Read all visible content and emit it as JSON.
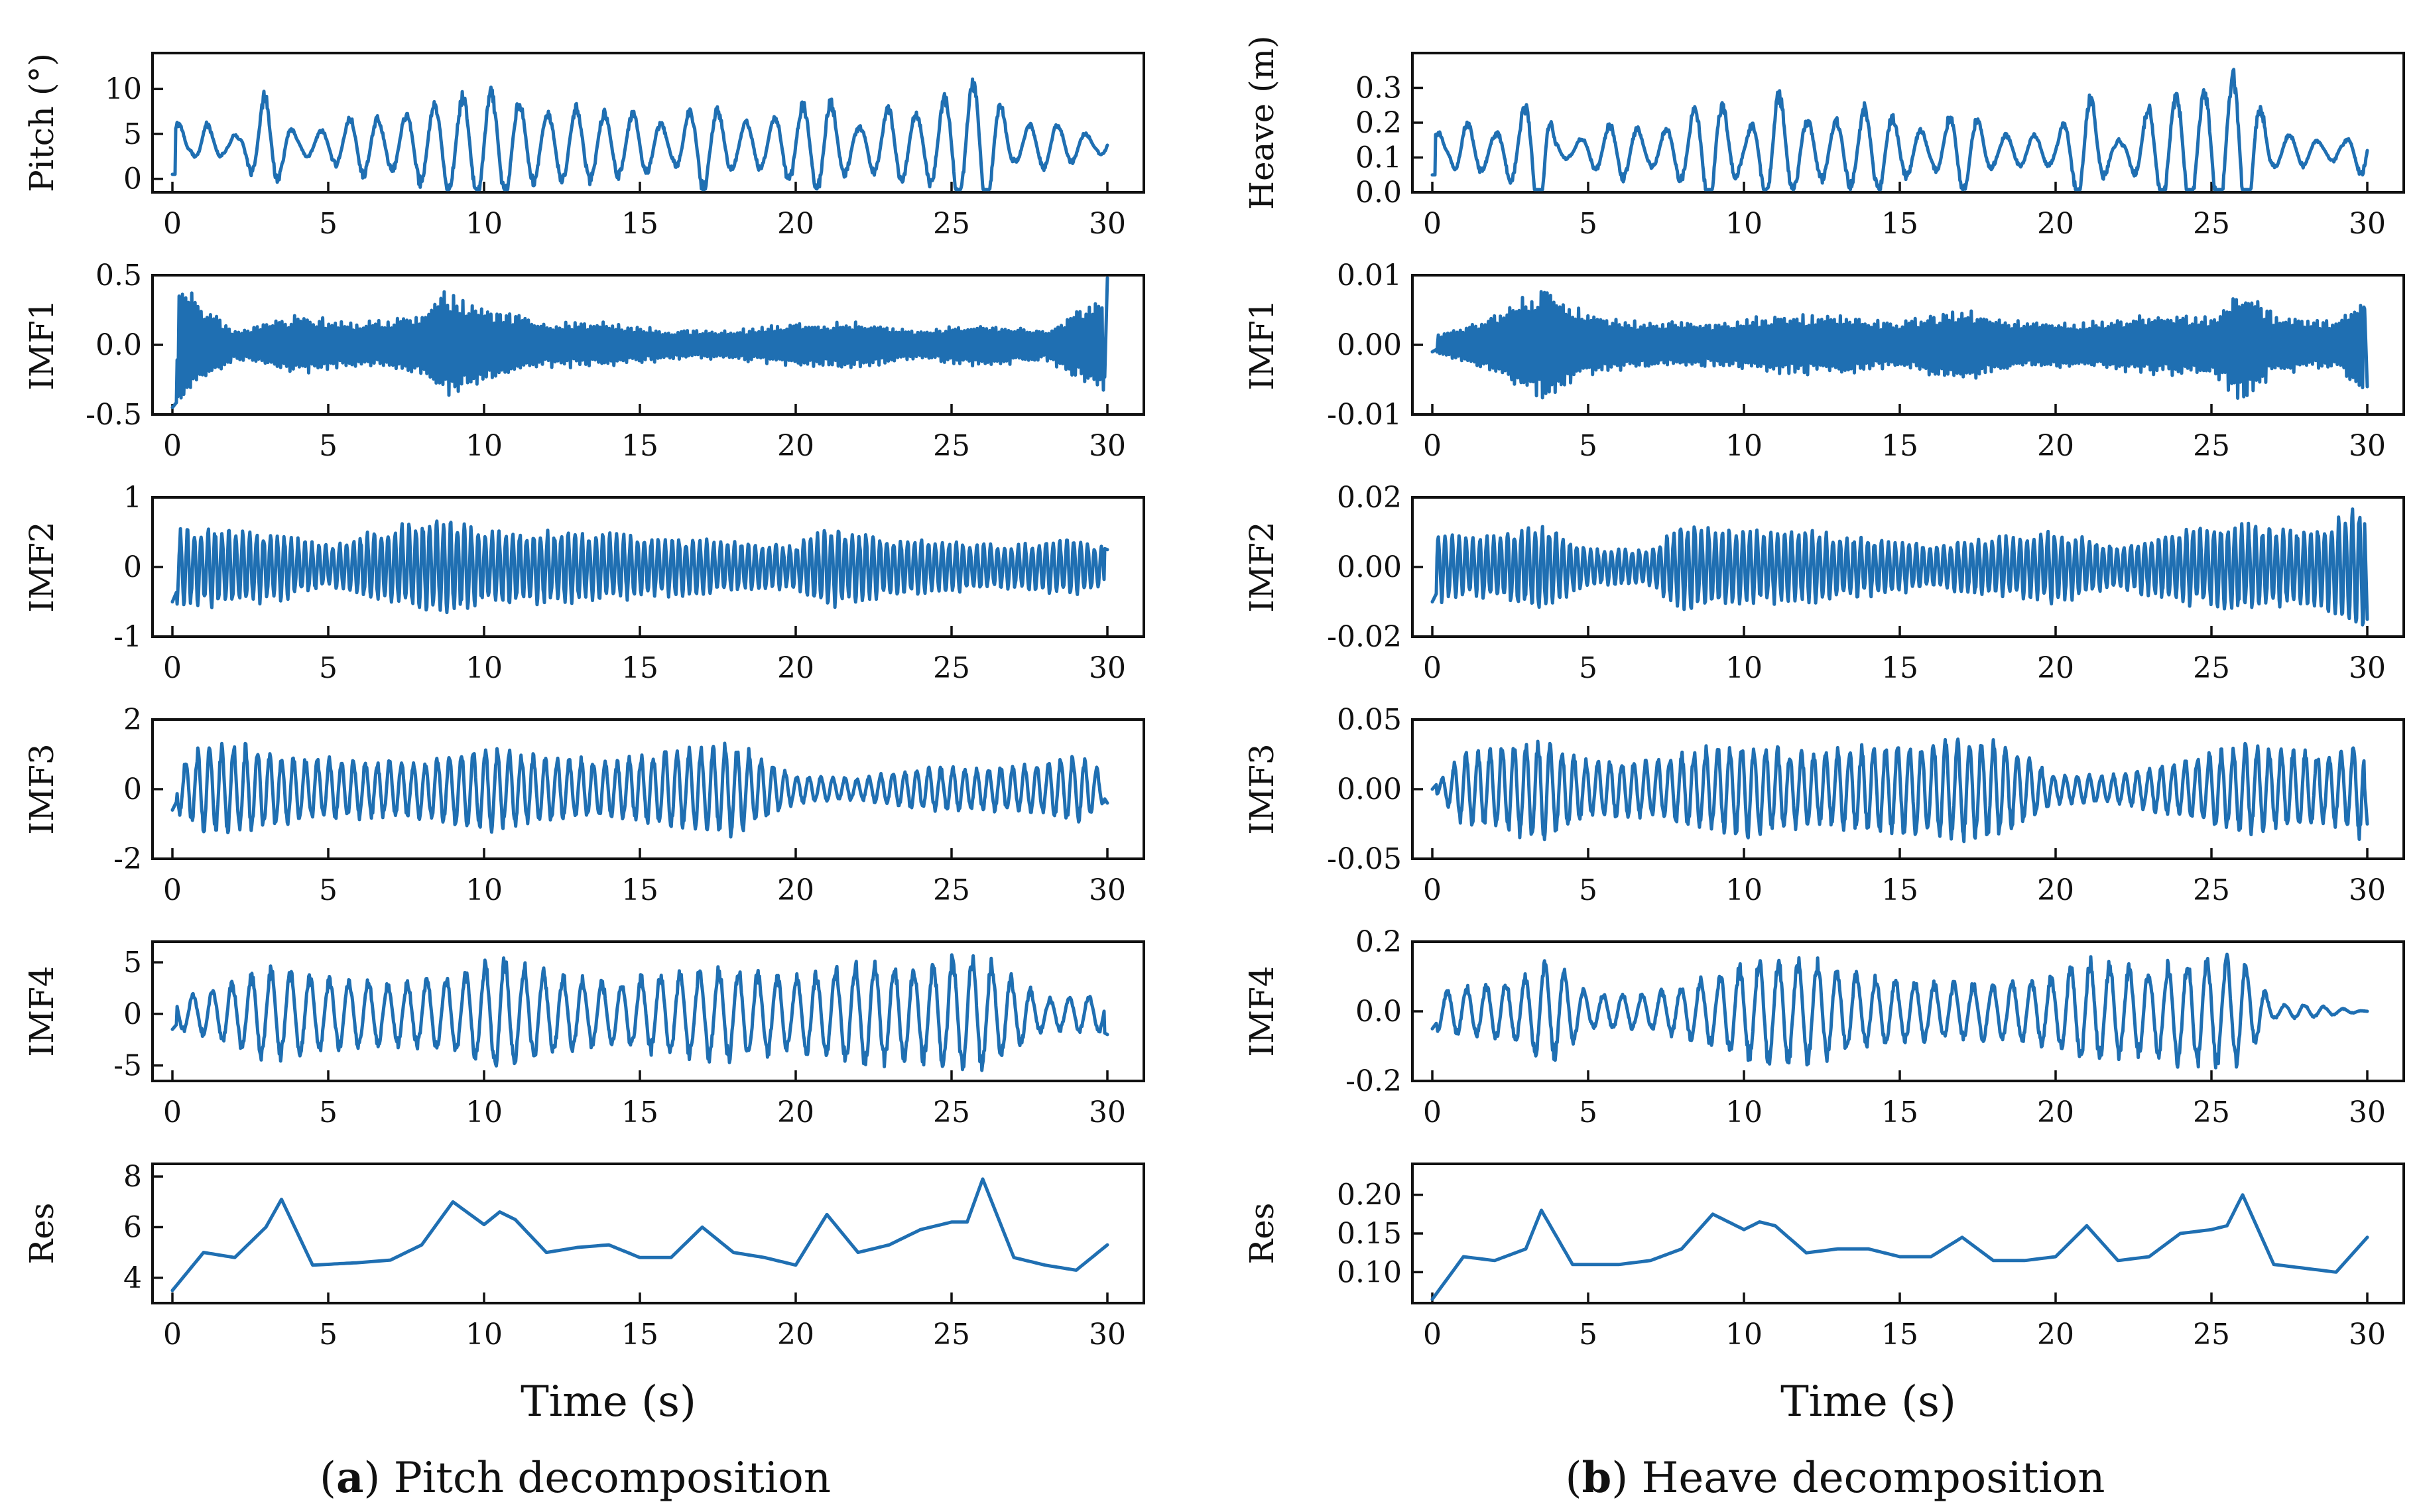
{
  "figure": {
    "xlabel": "Time (s)",
    "line_color": "#1f6fb2",
    "columns": [
      {
        "caption_letter": "a",
        "caption_text": "Pitch decomposition",
        "panels": [
          {
            "ylabel": "Pitch (°)",
            "ylim": [
              -1.5,
              14
            ],
            "yticks": [
              {
                "v": 0,
                "label": "0"
              },
              {
                "v": 5,
                "label": "5"
              },
              {
                "v": 10,
                "label": "10"
              }
            ]
          },
          {
            "ylabel": "IMF1",
            "ylim": [
              -0.5,
              0.5
            ],
            "yticks": [
              {
                "v": -0.5,
                "label": "-0.5"
              },
              {
                "v": 0,
                "label": "0.0"
              },
              {
                "v": 0.5,
                "label": "0.5"
              }
            ]
          },
          {
            "ylabel": "IMF2",
            "ylim": [
              -1,
              1
            ],
            "yticks": [
              {
                "v": -1,
                "label": "-1"
              },
              {
                "v": 0,
                "label": "0"
              },
              {
                "v": 1,
                "label": "1"
              }
            ]
          },
          {
            "ylabel": "IMF3",
            "ylim": [
              -2,
              2
            ],
            "yticks": [
              {
                "v": -2,
                "label": "-2"
              },
              {
                "v": 0,
                "label": "0"
              },
              {
                "v": 2,
                "label": "2"
              }
            ]
          },
          {
            "ylabel": "IMF4",
            "ylim": [
              -6.5,
              7
            ],
            "yticks": [
              {
                "v": -5,
                "label": "-5"
              },
              {
                "v": 0,
                "label": "0"
              },
              {
                "v": 5,
                "label": "5"
              }
            ]
          },
          {
            "ylabel": "Res",
            "ylim": [
              3,
              8.5
            ],
            "yticks": [
              {
                "v": 4,
                "label": "4"
              },
              {
                "v": 6,
                "label": "6"
              },
              {
                "v": 8,
                "label": "8"
              }
            ]
          }
        ]
      },
      {
        "caption_letter": "b",
        "caption_text": "Heave decomposition",
        "panels": [
          {
            "ylabel": "Heave (m)",
            "ylim": [
              0,
              0.4
            ],
            "yticks": [
              {
                "v": 0,
                "label": "0.0"
              },
              {
                "v": 0.1,
                "label": "0.1"
              },
              {
                "v": 0.2,
                "label": "0.2"
              },
              {
                "v": 0.3,
                "label": "0.3"
              }
            ]
          },
          {
            "ylabel": "IMF1",
            "ylim": [
              -0.01,
              0.01
            ],
            "yticks": [
              {
                "v": -0.01,
                "label": "-0.01"
              },
              {
                "v": 0,
                "label": "0.00"
              },
              {
                "v": 0.01,
                "label": "0.01"
              }
            ]
          },
          {
            "ylabel": "IMF2",
            "ylim": [
              -0.02,
              0.02
            ],
            "yticks": [
              {
                "v": -0.02,
                "label": "-0.02"
              },
              {
                "v": 0,
                "label": "0.00"
              },
              {
                "v": 0.02,
                "label": "0.02"
              }
            ]
          },
          {
            "ylabel": "IMF3",
            "ylim": [
              -0.05,
              0.05
            ],
            "yticks": [
              {
                "v": -0.05,
                "label": "-0.05"
              },
              {
                "v": 0,
                "label": "0.00"
              },
              {
                "v": 0.05,
                "label": "0.05"
              }
            ]
          },
          {
            "ylabel": "IMF4",
            "ylim": [
              -0.2,
              0.2
            ],
            "yticks": [
              {
                "v": -0.2,
                "label": "-0.2"
              },
              {
                "v": 0,
                "label": "0.0"
              },
              {
                "v": 0.2,
                "label": "0.2"
              }
            ]
          },
          {
            "ylabel": "Res",
            "ylim": [
              0.06,
              0.24
            ],
            "yticks": [
              {
                "v": 0.1,
                "label": "0.10"
              },
              {
                "v": 0.15,
                "label": "0.15"
              },
              {
                "v": 0.2,
                "label": "0.20"
              }
            ]
          }
        ]
      }
    ]
  },
  "chart_data": {
    "type": "line",
    "xlim": [
      0,
      30
    ],
    "xticks": [
      0,
      5,
      10,
      15,
      20,
      25,
      30
    ],
    "xlabel": "Time (s)",
    "grid": false,
    "panels": [
      {
        "ylabel": "Pitch (°)",
        "x": [
          0,
          1,
          2,
          3,
          4,
          5,
          6,
          7,
          8,
          9,
          10,
          11,
          12,
          13,
          14,
          15,
          16,
          17,
          18,
          19,
          20,
          21,
          22,
          23,
          24,
          25,
          26,
          27,
          28,
          29,
          30
        ],
        "y": [
          0.5,
          6,
          3,
          10,
          4,
          5,
          7,
          6,
          8,
          9,
          10,
          9,
          7,
          8,
          7,
          7,
          5,
          9,
          6,
          6,
          8,
          9,
          5,
          8,
          7,
          10,
          12,
          5,
          6,
          5,
          3
        ]
      },
      {
        "ylabel": "IMF1",
        "x": [
          0,
          2,
          4,
          6,
          8,
          8.7,
          10,
          12,
          14,
          16,
          18,
          20,
          22,
          24,
          26,
          28,
          29.9,
          30
        ],
        "y": [
          -0.45,
          0.1,
          -0.2,
          0.15,
          -0.2,
          0.35,
          -0.25,
          0.15,
          -0.15,
          0.1,
          -0.1,
          0.15,
          -0.15,
          0.1,
          -0.15,
          0.1,
          -0.35,
          0.48
        ]
      },
      {
        "ylabel": "IMF2",
        "x": [
          0,
          1,
          3,
          5,
          7,
          8.8,
          10,
          12,
          14,
          16,
          18,
          20,
          21,
          23,
          25,
          27,
          29,
          30
        ],
        "y": [
          -0.5,
          0.55,
          -0.5,
          0.3,
          -0.55,
          0.65,
          -0.5,
          0.5,
          -0.45,
          0.4,
          -0.35,
          0.3,
          0.55,
          -0.4,
          0.35,
          -0.3,
          0.4,
          0.25
        ]
      },
      {
        "ylabel": "IMF3",
        "x": [
          0,
          1,
          2,
          4,
          6,
          8,
          10,
          12,
          14,
          16,
          18,
          20,
          22,
          24,
          26,
          28,
          29,
          30
        ],
        "y": [
          -0.6,
          1.2,
          -1.3,
          0.9,
          -0.8,
          0.8,
          1.2,
          -0.9,
          0.8,
          -1.1,
          1.3,
          -0.4,
          0.3,
          -0.6,
          0.6,
          -0.7,
          1.0,
          -0.4
        ]
      },
      {
        "ylabel": "IMF4",
        "x": [
          0,
          1,
          3,
          5,
          7,
          9,
          10.5,
          12,
          14,
          16,
          18,
          20,
          22,
          24,
          25,
          26,
          28,
          30
        ],
        "y": [
          -1.5,
          2,
          4.5,
          -3.5,
          3,
          -3.5,
          5.5,
          -4,
          3,
          -4,
          4.5,
          -3.5,
          5,
          -4.5,
          5.5,
          -5.5,
          1.5,
          -2
        ]
      },
      {
        "ylabel": "Res",
        "x": [
          0,
          1,
          2,
          3,
          3.5,
          4.5,
          6,
          7,
          8,
          9,
          10,
          10.5,
          11,
          12,
          13,
          14,
          15,
          16,
          17,
          18,
          19,
          20,
          21,
          22,
          23,
          24,
          25,
          25.5,
          26,
          27,
          28,
          29,
          30
        ],
        "y": [
          3.5,
          5,
          4.8,
          6,
          7.1,
          4.5,
          4.6,
          4.7,
          5.3,
          7,
          6.1,
          6.6,
          6.3,
          5,
          5.2,
          5.3,
          4.8,
          4.8,
          6,
          5,
          4.8,
          4.5,
          6.5,
          5,
          5.3,
          5.9,
          6.2,
          6.2,
          7.9,
          4.8,
          4.5,
          4.3,
          5.3
        ]
      },
      {
        "ylabel": "Heave (m)",
        "x": [
          0,
          1,
          2,
          3,
          3.5,
          4,
          5,
          6,
          7,
          8,
          9,
          10,
          11,
          12,
          13,
          14,
          15,
          16,
          17,
          18,
          19,
          20,
          21,
          22,
          23,
          24,
          25,
          26,
          27,
          28,
          29,
          30
        ],
        "y": [
          0.05,
          0.2,
          0.15,
          0.25,
          0.35,
          0.1,
          0.15,
          0.2,
          0.15,
          0.2,
          0.3,
          0.15,
          0.3,
          0.2,
          0.2,
          0.25,
          0.2,
          0.15,
          0.25,
          0.15,
          0.15,
          0.15,
          0.3,
          0.1,
          0.25,
          0.3,
          0.3,
          0.38,
          0.15,
          0.15,
          0.1,
          0.2
        ]
      },
      {
        "ylabel": "IMF1",
        "x": [
          0,
          2,
          3.6,
          5,
          7,
          9,
          11,
          13,
          15,
          17,
          19,
          21,
          23,
          25,
          26.1,
          27,
          29,
          29.9,
          30
        ],
        "y": [
          -0.001,
          0.004,
          0.008,
          -0.004,
          0.003,
          -0.003,
          0.004,
          -0.004,
          0.003,
          -0.005,
          0.003,
          -0.003,
          0.004,
          -0.004,
          0.008,
          -0.004,
          0.003,
          0.007,
          -0.006
        ]
      },
      {
        "ylabel": "IMF2",
        "x": [
          0,
          1,
          3.5,
          5,
          7,
          8,
          10,
          12,
          14,
          16,
          18,
          20,
          22,
          24,
          26,
          28,
          29.9,
          30
        ],
        "y": [
          -0.01,
          0.008,
          0.012,
          -0.005,
          0.005,
          0.012,
          -0.01,
          0.01,
          -0.008,
          0.006,
          -0.008,
          0.01,
          -0.006,
          0.01,
          0.012,
          -0.01,
          0.017,
          -0.015
        ]
      },
      {
        "ylabel": "IMF3",
        "x": [
          0,
          1,
          3.5,
          5,
          7,
          9,
          10,
          12,
          14,
          16,
          18,
          20,
          22,
          24,
          26,
          27,
          29,
          29.8,
          30
        ],
        "y": [
          0,
          0.025,
          0.036,
          -0.02,
          0.02,
          -0.03,
          0.033,
          -0.025,
          0.03,
          -0.035,
          0.036,
          -0.01,
          0.01,
          -0.02,
          0.032,
          -0.028,
          0.025,
          0.035,
          -0.025
        ]
      },
      {
        "ylabel": "IMF4",
        "x": [
          0,
          1,
          2,
          3,
          3.5,
          4,
          5,
          7,
          9,
          10.5,
          11,
          12,
          14,
          16,
          18,
          20,
          21,
          22,
          23,
          24,
          25,
          26,
          27,
          28,
          30
        ],
        "y": [
          -0.05,
          0.07,
          -0.08,
          0.1,
          0.14,
          -0.13,
          0.05,
          -0.05,
          0.1,
          0.15,
          -0.15,
          0.15,
          -0.1,
          0.08,
          -0.08,
          0.1,
          0.15,
          -0.13,
          0.12,
          0.15,
          -0.16,
          0.15,
          -0.02,
          0.02,
          0
        ]
      },
      {
        "ylabel": "Res",
        "x": [
          0,
          1,
          2,
          3,
          3.5,
          4.5,
          6,
          7,
          8,
          9,
          10,
          10.5,
          11,
          12,
          13,
          14,
          15,
          16,
          17,
          18,
          19,
          20,
          21,
          22,
          23,
          24,
          25,
          25.5,
          26,
          27,
          28,
          29,
          30
        ],
        "y": [
          0.065,
          0.12,
          0.115,
          0.13,
          0.18,
          0.11,
          0.11,
          0.115,
          0.13,
          0.175,
          0.155,
          0.165,
          0.16,
          0.125,
          0.13,
          0.13,
          0.12,
          0.12,
          0.145,
          0.115,
          0.115,
          0.12,
          0.16,
          0.115,
          0.12,
          0.15,
          0.155,
          0.16,
          0.2,
          0.11,
          0.105,
          0.1,
          0.145
        ]
      }
    ]
  }
}
